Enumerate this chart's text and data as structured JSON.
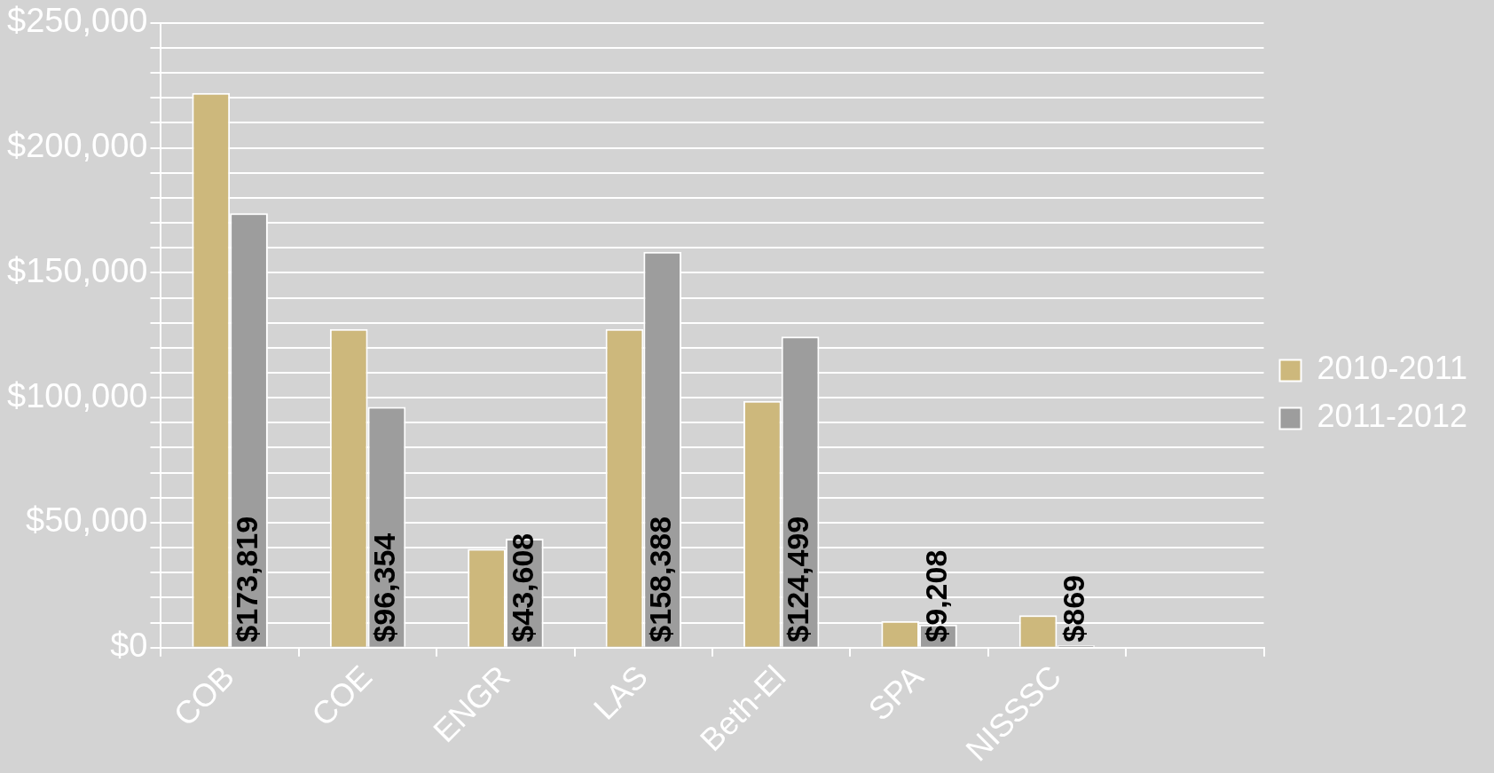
{
  "chart_data": {
    "type": "bar",
    "categories": [
      "COB",
      "COE",
      "ENGR",
      "LAS",
      "Beth-El",
      "SPA",
      "NISSSC",
      null
    ],
    "series": [
      {
        "name": "2010-2011",
        "color": "#cdb87c",
        "values": [
          222000,
          127500,
          39500,
          127500,
          98700,
          10600,
          12900,
          null
        ]
      },
      {
        "name": "2011-2012",
        "color": "#9d9d9d",
        "values": [
          173819,
          96354,
          43608,
          158388,
          124499,
          9208,
          869,
          null
        ],
        "value_labels": [
          "$173,819",
          "$96,354",
          "$43,608",
          "$158,388",
          "$124,499",
          "$9,208",
          "$869",
          null
        ]
      }
    ],
    "ylim": [
      0,
      250000
    ],
    "yticks": [
      {
        "value": 0,
        "label": "$0"
      },
      {
        "value": 10000,
        "label": null
      },
      {
        "value": 20000,
        "label": null
      },
      {
        "value": 30000,
        "label": null
      },
      {
        "value": 40000,
        "label": null
      },
      {
        "value": 50000,
        "label": "$50,000"
      },
      {
        "value": 60000,
        "label": null
      },
      {
        "value": 70000,
        "label": null
      },
      {
        "value": 80000,
        "label": null
      },
      {
        "value": 90000,
        "label": null
      },
      {
        "value": 100000,
        "label": "$100,000"
      },
      {
        "value": 110000,
        "label": null
      },
      {
        "value": 120000,
        "label": null
      },
      {
        "value": 130000,
        "label": null
      },
      {
        "value": 140000,
        "label": null
      },
      {
        "value": 150000,
        "label": "$150,000"
      },
      {
        "value": 160000,
        "label": null
      },
      {
        "value": 170000,
        "label": null
      },
      {
        "value": 180000,
        "label": null
      },
      {
        "value": 190000,
        "label": null
      },
      {
        "value": 200000,
        "label": "$200,000"
      },
      {
        "value": 210000,
        "label": null
      },
      {
        "value": 220000,
        "label": null
      },
      {
        "value": 230000,
        "label": null
      },
      {
        "value": 240000,
        "label": null
      },
      {
        "value": 250000,
        "label": "$250,000"
      }
    ],
    "grid": "y",
    "legend": "right"
  }
}
